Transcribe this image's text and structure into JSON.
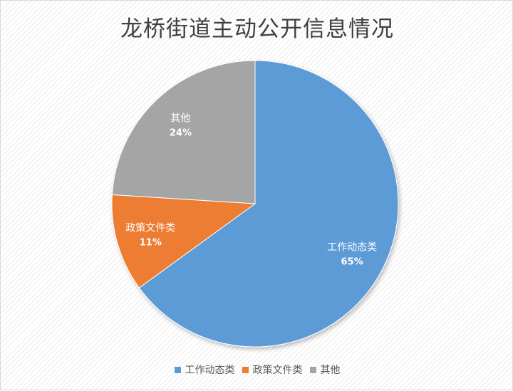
{
  "chart_data": {
    "type": "pie",
    "title": "龙桥街道主动公开信息情况",
    "slices": [
      {
        "name": "工作动态类",
        "value": 65,
        "label": "65%",
        "color": "#5b9bd5"
      },
      {
        "name": "政策文件类",
        "value": 11,
        "label": "11%",
        "color": "#ed7d31"
      },
      {
        "name": "其他",
        "value": 24,
        "label": "24%",
        "color": "#a5a5a5"
      }
    ],
    "legend_position": "bottom"
  }
}
